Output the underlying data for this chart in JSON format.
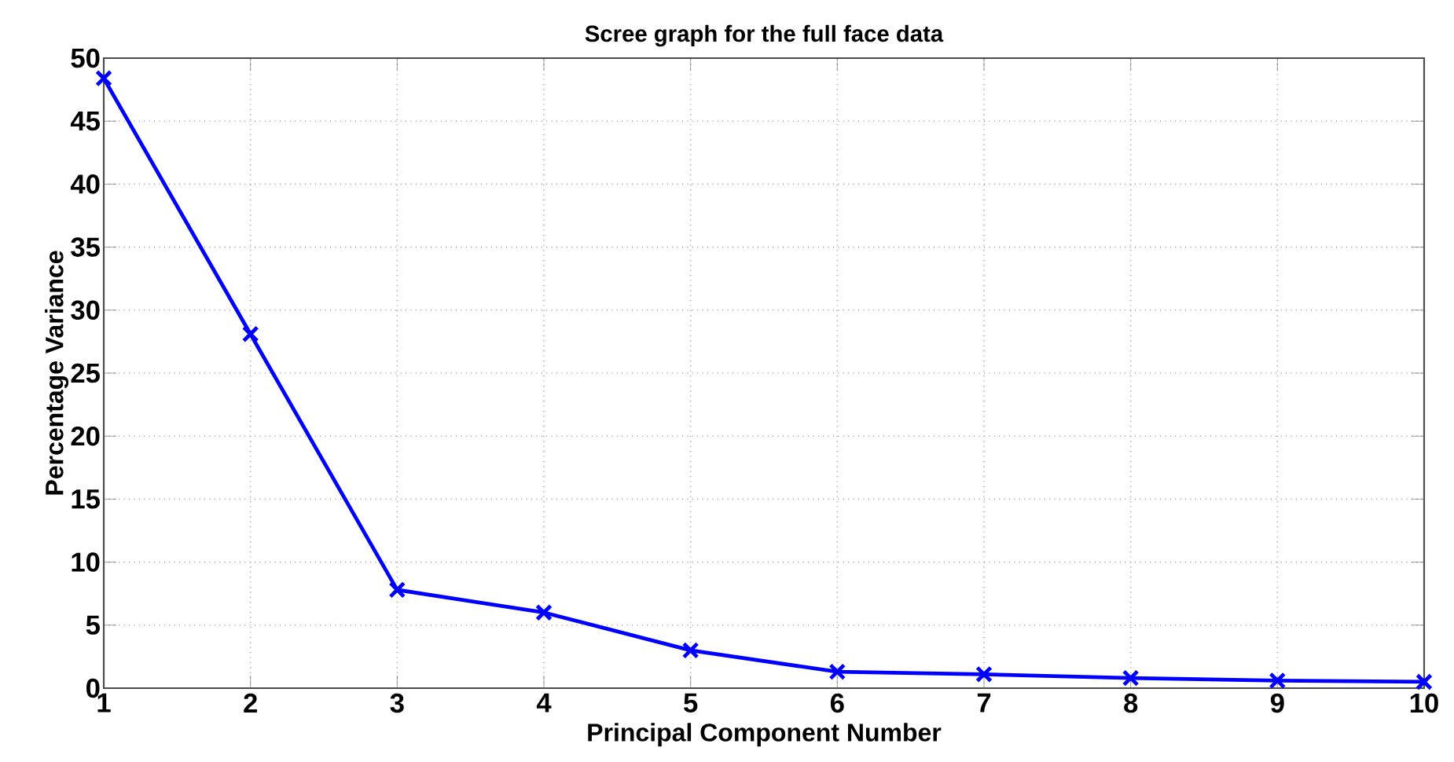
{
  "chart_data": {
    "type": "line",
    "title": "Scree graph for the full face data",
    "xlabel": "Principal Component Number",
    "ylabel": "Percentage Variance",
    "x": [
      1,
      2,
      3,
      4,
      5,
      6,
      7,
      8,
      9,
      10
    ],
    "series": [
      {
        "color": "#0000ff",
        "values": [
          48.4,
          28.1,
          7.8,
          6.0,
          3.0,
          1.3,
          1.1,
          0.8,
          0.6,
          0.5
        ]
      }
    ],
    "xlim": [
      1,
      10
    ],
    "xticks": [
      1,
      2,
      3,
      4,
      5,
      6,
      7,
      8,
      9,
      10
    ],
    "ylim": [
      0,
      50
    ],
    "yticks": [
      0,
      5,
      10,
      15,
      20,
      25,
      30,
      35,
      40,
      45,
      50
    ],
    "grid": true,
    "marker": "cross",
    "line_style": "solid"
  }
}
